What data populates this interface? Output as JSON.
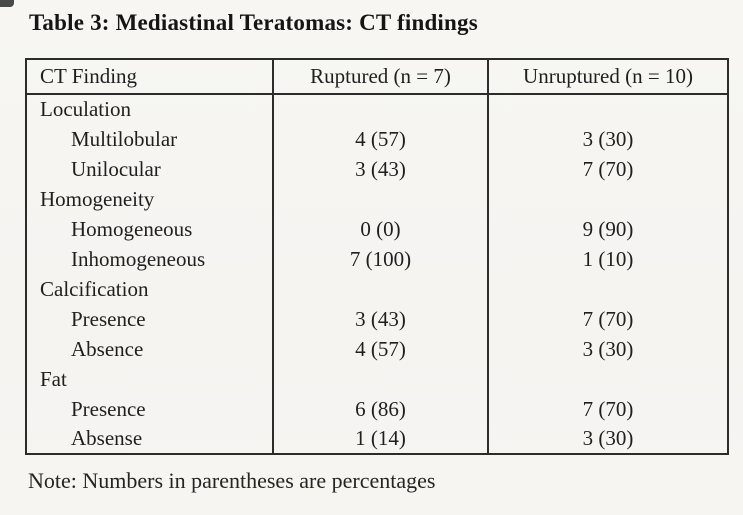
{
  "title": "Table 3: Mediastinal Teratomas: CT findings",
  "table": {
    "columns": [
      "CT Finding",
      "Ruptured (n = 7)",
      "Unruptured (n = 10)"
    ],
    "rows": [
      {
        "label": "Loculation",
        "indent": false,
        "ruptured": "",
        "unruptured": ""
      },
      {
        "label": "Multilobular",
        "indent": true,
        "ruptured": "4 (57)",
        "unruptured": "3 (30)"
      },
      {
        "label": "Unilocular",
        "indent": true,
        "ruptured": "3 (43)",
        "unruptured": "7 (70)"
      },
      {
        "label": "Homogeneity",
        "indent": false,
        "ruptured": "",
        "unruptured": ""
      },
      {
        "label": "Homogeneous",
        "indent": true,
        "ruptured": "0 (0)",
        "unruptured": "9 (90)"
      },
      {
        "label": "Inhomogeneous",
        "indent": true,
        "ruptured": "7 (100)",
        "unruptured": "1 (10)"
      },
      {
        "label": "Calcification",
        "indent": false,
        "ruptured": "",
        "unruptured": ""
      },
      {
        "label": "Presence",
        "indent": true,
        "ruptured": "3 (43)",
        "unruptured": "7 (70)"
      },
      {
        "label": "Absence",
        "indent": true,
        "ruptured": "4 (57)",
        "unruptured": "3 (30)"
      },
      {
        "label": "Fat",
        "indent": false,
        "ruptured": "",
        "unruptured": ""
      },
      {
        "label": "Presence",
        "indent": true,
        "ruptured": "6 (86)",
        "unruptured": "7 (70)"
      },
      {
        "label": "Absense",
        "indent": true,
        "ruptured": "1 (14)",
        "unruptured": "3 (30)"
      }
    ]
  },
  "note": "Note: Numbers in parentheses are percentages"
}
